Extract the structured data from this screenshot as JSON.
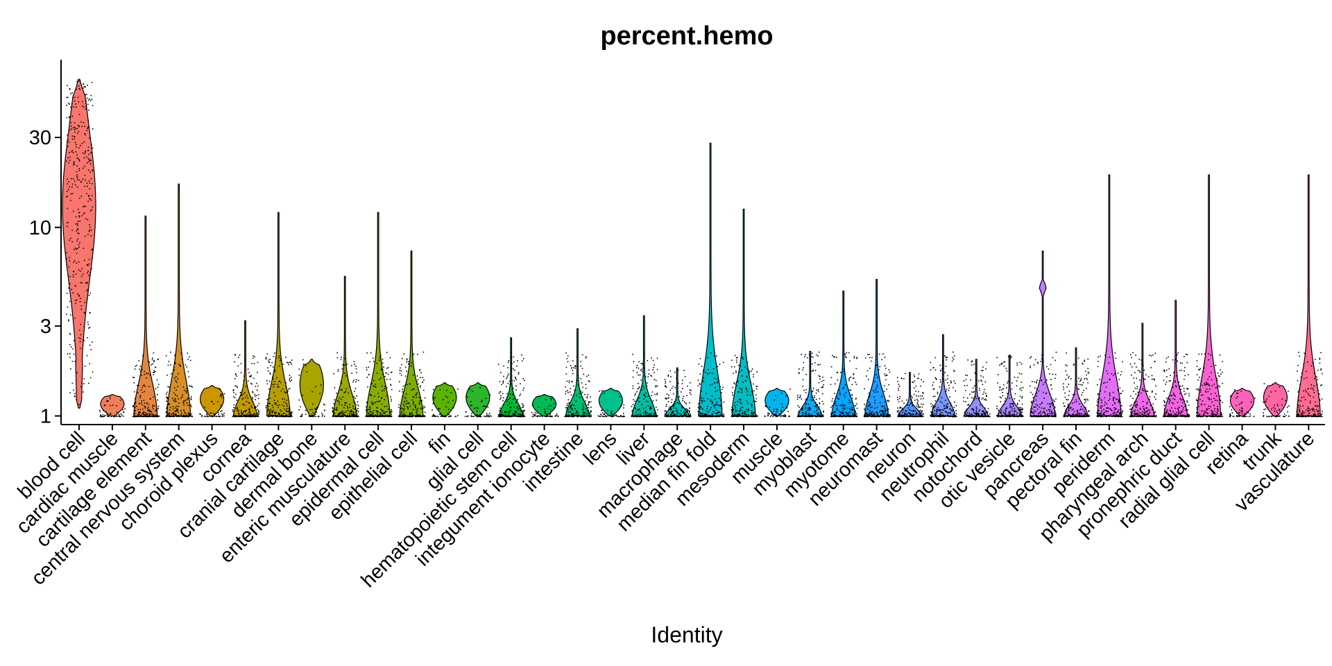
{
  "chart_data": {
    "type": "violin",
    "title": "percent.hemo",
    "xlabel": "Identity",
    "ylabel": "",
    "y_scale": "log",
    "y_ticks": [
      1,
      3,
      10,
      30
    ],
    "ylim": [
      0.9,
      75
    ],
    "categories": [
      "blood cell",
      "cardiac muscle",
      "cartilage element",
      "central nervous system",
      "choroid plexus",
      "cornea",
      "cranial cartilage",
      "dermal bone",
      "enteric musculature",
      "epidermal cell",
      "epithelial cell",
      "fin",
      "glial cell",
      "hematopoietic stem cell",
      "integument ionocyte",
      "intestine",
      "lens",
      "liver",
      "macrophage",
      "median fin fold",
      "mesoderm",
      "muscle",
      "myoblast",
      "myotome",
      "neuromast",
      "neuron",
      "neutrophil",
      "notochord",
      "otic vesicle",
      "pancreas",
      "pectoral fin",
      "periderm",
      "pharyngeal arch",
      "pronephric duct",
      "radial glial cell",
      "retina",
      "trunk",
      "vasculature"
    ],
    "series": [
      {
        "category": "blood cell",
        "color": "#F8766D",
        "min": 1.1,
        "max": 61,
        "median": 13,
        "shape": "wide"
      },
      {
        "category": "cardiac muscle",
        "color": "#F07F5B",
        "min": 1.0,
        "max": 1.3,
        "median": 1.1,
        "shape": "small"
      },
      {
        "category": "cartilage element",
        "color": "#E48640",
        "min": 1.0,
        "max": 11.5,
        "median": 1.2,
        "shape": "base"
      },
      {
        "category": "central nervous system",
        "color": "#D88F28",
        "min": 1.0,
        "max": 17,
        "median": 1.2,
        "shape": "base"
      },
      {
        "category": "choroid plexus",
        "color": "#CC9600",
        "min": 1.0,
        "max": 1.45,
        "median": 1.15,
        "shape": "small"
      },
      {
        "category": "cornea",
        "color": "#C19A00",
        "min": 1.0,
        "max": 3.2,
        "median": 1.1,
        "shape": "base"
      },
      {
        "category": "cranial cartilage",
        "color": "#B79F00",
        "min": 1.0,
        "max": 12,
        "median": 1.2,
        "shape": "base"
      },
      {
        "category": "dermal bone",
        "color": "#A8A400",
        "min": 1.0,
        "max": 2.0,
        "median": 1.15,
        "shape": "small"
      },
      {
        "category": "enteric musculature",
        "color": "#9AA800",
        "min": 1.0,
        "max": 5.5,
        "median": 1.2,
        "shape": "base"
      },
      {
        "category": "epidermal cell",
        "color": "#89AC00",
        "min": 1.0,
        "max": 12,
        "median": 1.2,
        "shape": "base"
      },
      {
        "category": "epithelial cell",
        "color": "#7CAE00",
        "min": 1.0,
        "max": 7.5,
        "median": 1.25,
        "shape": "base"
      },
      {
        "category": "fin",
        "color": "#5BB300",
        "min": 1.0,
        "max": 1.5,
        "median": 1.1,
        "shape": "small"
      },
      {
        "category": "glial cell",
        "color": "#2CB62C",
        "min": 1.0,
        "max": 1.5,
        "median": 1.1,
        "shape": "small"
      },
      {
        "category": "hematopoietic stem cell",
        "color": "#00BA38",
        "min": 1.0,
        "max": 2.6,
        "median": 1.05,
        "shape": "base"
      },
      {
        "category": "integument ionocyte",
        "color": "#00BC56",
        "min": 1.0,
        "max": 1.3,
        "median": 1.05,
        "shape": "small"
      },
      {
        "category": "intestine",
        "color": "#00BE71",
        "min": 1.0,
        "max": 2.9,
        "median": 1.1,
        "shape": "base"
      },
      {
        "category": "lens",
        "color": "#00C08B",
        "min": 1.0,
        "max": 1.4,
        "median": 1.15,
        "shape": "small"
      },
      {
        "category": "liver",
        "color": "#00C0A3",
        "min": 1.0,
        "max": 3.4,
        "median": 1.05,
        "shape": "base"
      },
      {
        "category": "macrophage",
        "color": "#00BFB8",
        "min": 1.0,
        "max": 1.8,
        "median": 1.1,
        "shape": "base"
      },
      {
        "category": "median fin fold",
        "color": "#00BDCC",
        "min": 1.0,
        "max": 28,
        "median": 1.15,
        "shape": "base"
      },
      {
        "category": "mesoderm",
        "color": "#00BFC4",
        "min": 1.0,
        "max": 12.5,
        "median": 1.2,
        "shape": "base"
      },
      {
        "category": "muscle",
        "color": "#00B4EF",
        "min": 1.0,
        "max": 1.4,
        "median": 1.05,
        "shape": "small"
      },
      {
        "category": "myoblast",
        "color": "#00ADFA",
        "min": 1.0,
        "max": 2.2,
        "median": 1.05,
        "shape": "base"
      },
      {
        "category": "myotome",
        "color": "#00A5FF",
        "min": 1.0,
        "max": 4.6,
        "median": 1.15,
        "shape": "base"
      },
      {
        "category": "neuromast",
        "color": "#1E9CFF",
        "min": 1.0,
        "max": 5.3,
        "median": 1.15,
        "shape": "base"
      },
      {
        "category": "neuron",
        "color": "#5492FF",
        "min": 1.0,
        "max": 1.7,
        "median": 1.1,
        "shape": "base"
      },
      {
        "category": "neutrophil",
        "color": "#7997FF",
        "min": 1.0,
        "max": 2.7,
        "median": 1.1,
        "shape": "base"
      },
      {
        "category": "notochord",
        "color": "#9590FF",
        "min": 1.0,
        "max": 2.0,
        "median": 1.05,
        "shape": "base"
      },
      {
        "category": "otic vesicle",
        "color": "#AC88FF",
        "min": 1.0,
        "max": 2.1,
        "median": 1.1,
        "shape": "base"
      },
      {
        "category": "pancreas",
        "color": "#C77CFF",
        "min": 1.0,
        "max": 7.5,
        "median": 1.1,
        "shape": "pancreas"
      },
      {
        "category": "pectoral fin",
        "color": "#D575FE",
        "min": 1.0,
        "max": 2.3,
        "median": 1.2,
        "shape": "base"
      },
      {
        "category": "periderm",
        "color": "#E36EF6",
        "min": 1.0,
        "max": 19,
        "median": 1.1,
        "shape": "base"
      },
      {
        "category": "pharyngeal arch",
        "color": "#EE67EB",
        "min": 1.0,
        "max": 3.1,
        "median": 1.15,
        "shape": "base"
      },
      {
        "category": "pronephric duct",
        "color": "#F564E3",
        "min": 1.0,
        "max": 4.1,
        "median": 1.05,
        "shape": "base"
      },
      {
        "category": "radial glial cell",
        "color": "#FA62D2",
        "min": 1.0,
        "max": 19,
        "median": 1.2,
        "shape": "base"
      },
      {
        "category": "retina",
        "color": "#FF62BC",
        "min": 1.0,
        "max": 1.4,
        "median": 1.2,
        "shape": "small"
      },
      {
        "category": "trunk",
        "color": "#FF67A4",
        "min": 1.0,
        "max": 1.5,
        "median": 1.05,
        "shape": "small"
      },
      {
        "category": "vasculature",
        "color": "#FF6C91",
        "min": 1.0,
        "max": 19,
        "median": 1.2,
        "shape": "base"
      }
    ]
  }
}
